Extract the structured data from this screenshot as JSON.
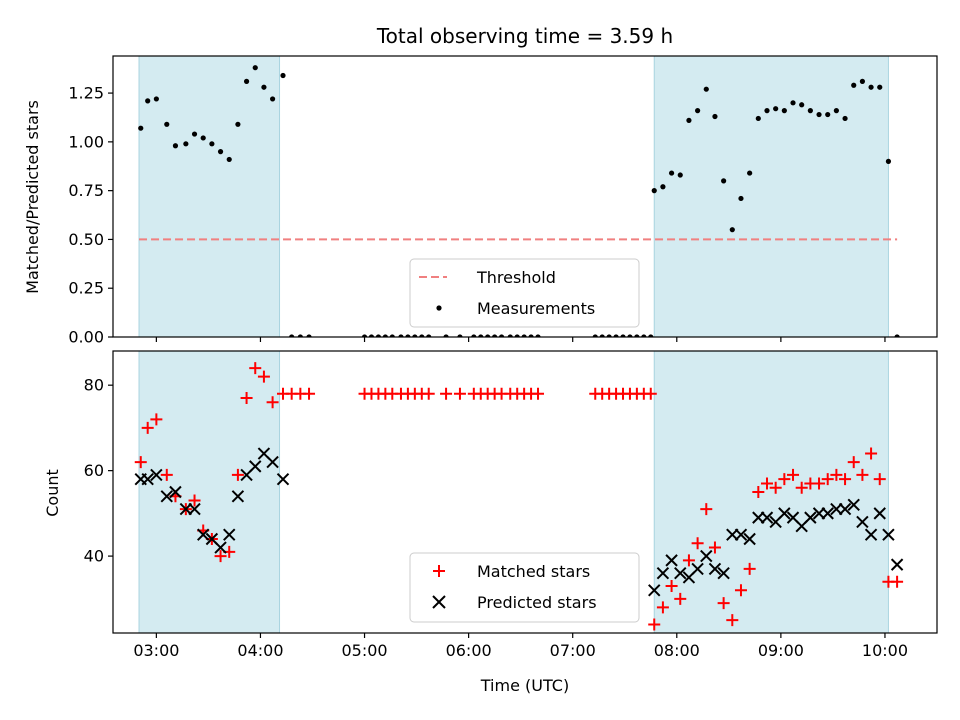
{
  "chart_data": [
    {
      "type": "scatter",
      "title": "Total observing time = 3.59 h",
      "xlabel": "",
      "ylabel": "Matched/Predicted stars",
      "ylim": [
        0,
        1.44
      ],
      "yticks": [
        0.0,
        0.25,
        0.5,
        0.75,
        1.0,
        1.25
      ],
      "ytick_labels": [
        "0.00",
        "0.25",
        "0.50",
        "0.75",
        "1.00",
        "1.25"
      ],
      "xlim": [
        "02:35",
        "10:30"
      ],
      "shaded_spans": [
        [
          "02:50",
          "04:11"
        ],
        [
          "07:47",
          "10:02"
        ]
      ],
      "threshold": {
        "name": "Threshold",
        "value": 0.5,
        "x_range": [
          "02:50",
          "10:07"
        ],
        "color": "#f08080",
        "style": "dashed"
      },
      "legend": {
        "placement": "lower-center",
        "entries": [
          "Threshold",
          "Measurements"
        ]
      },
      "series": [
        {
          "name": "Measurements",
          "marker": "dot",
          "color": "#000000",
          "points": [
            [
              "02:51",
              1.07
            ],
            [
              "02:55",
              1.21
            ],
            [
              "03:00",
              1.22
            ],
            [
              "03:06",
              1.09
            ],
            [
              "03:11",
              0.98
            ],
            [
              "03:17",
              0.99
            ],
            [
              "03:22",
              1.04
            ],
            [
              "03:27",
              1.02
            ],
            [
              "03:32",
              0.99
            ],
            [
              "03:37",
              0.95
            ],
            [
              "03:42",
              0.91
            ],
            [
              "03:47",
              1.09
            ],
            [
              "03:52",
              1.31
            ],
            [
              "03:57",
              1.38
            ],
            [
              "04:02",
              1.28
            ],
            [
              "04:07",
              1.22
            ],
            [
              "04:13",
              1.34
            ],
            [
              "04:18",
              0.0
            ],
            [
              "04:23",
              0.0
            ],
            [
              "04:28",
              0.0
            ],
            [
              "05:00",
              0.0
            ],
            [
              "05:04",
              0.0
            ],
            [
              "05:08",
              0.0
            ],
            [
              "05:12",
              0.0
            ],
            [
              "05:16",
              0.0
            ],
            [
              "05:21",
              0.0
            ],
            [
              "05:25",
              0.0
            ],
            [
              "05:29",
              0.0
            ],
            [
              "05:33",
              0.0
            ],
            [
              "05:37",
              0.0
            ],
            [
              "05:47",
              0.0
            ],
            [
              "05:55",
              0.0
            ],
            [
              "06:03",
              0.0
            ],
            [
              "06:07",
              0.0
            ],
            [
              "06:11",
              0.0
            ],
            [
              "06:15",
              0.0
            ],
            [
              "06:19",
              0.0
            ],
            [
              "06:24",
              0.0
            ],
            [
              "06:28",
              0.0
            ],
            [
              "06:32",
              0.0
            ],
            [
              "06:36",
              0.0
            ],
            [
              "06:40",
              0.0
            ],
            [
              "07:13",
              0.0
            ],
            [
              "07:17",
              0.0
            ],
            [
              "07:21",
              0.0
            ],
            [
              "07:25",
              0.0
            ],
            [
              "07:29",
              0.0
            ],
            [
              "07:33",
              0.0
            ],
            [
              "07:37",
              0.0
            ],
            [
              "07:41",
              0.0
            ],
            [
              "07:45",
              0.0
            ],
            [
              "07:47",
              0.75
            ],
            [
              "07:52",
              0.77
            ],
            [
              "07:57",
              0.84
            ],
            [
              "08:02",
              0.83
            ],
            [
              "08:07",
              1.11
            ],
            [
              "08:12",
              1.16
            ],
            [
              "08:17",
              1.27
            ],
            [
              "08:22",
              1.13
            ],
            [
              "08:27",
              0.8
            ],
            [
              "08:32",
              0.55
            ],
            [
              "08:37",
              0.71
            ],
            [
              "08:42",
              0.84
            ],
            [
              "08:47",
              1.12
            ],
            [
              "08:52",
              1.16
            ],
            [
              "08:57",
              1.17
            ],
            [
              "09:02",
              1.16
            ],
            [
              "09:07",
              1.2
            ],
            [
              "09:12",
              1.19
            ],
            [
              "09:17",
              1.16
            ],
            [
              "09:22",
              1.14
            ],
            [
              "09:27",
              1.14
            ],
            [
              "09:32",
              1.16
            ],
            [
              "09:37",
              1.12
            ],
            [
              "09:42",
              1.29
            ],
            [
              "09:47",
              1.31
            ],
            [
              "09:52",
              1.28
            ],
            [
              "09:57",
              1.28
            ],
            [
              "10:02",
              0.9
            ],
            [
              "10:07",
              0.0
            ]
          ]
        }
      ]
    },
    {
      "type": "scatter",
      "title": "",
      "xlabel": "Time (UTC)",
      "ylabel": "Count",
      "ylim": [
        22,
        88
      ],
      "yticks": [
        40,
        60,
        80
      ],
      "ytick_labels": [
        "40",
        "60",
        "80"
      ],
      "xlim": [
        "02:35",
        "10:30"
      ],
      "xticks": [
        "03:00",
        "04:00",
        "05:00",
        "06:00",
        "07:00",
        "08:00",
        "09:00",
        "10:00"
      ],
      "xtick_labels": [
        "03:00",
        "04:00",
        "05:00",
        "06:00",
        "07:00",
        "08:00",
        "09:00",
        "10:00"
      ],
      "shaded_spans": [
        [
          "02:50",
          "04:11"
        ],
        [
          "07:47",
          "10:02"
        ]
      ],
      "legend": {
        "placement": "lower-center",
        "entries": [
          "Matched stars",
          "Predicted stars"
        ]
      },
      "series": [
        {
          "name": "Matched stars",
          "marker": "plus",
          "color": "#ff0000",
          "points": [
            [
              "02:51",
              62
            ],
            [
              "02:55",
              70
            ],
            [
              "03:00",
              72
            ],
            [
              "03:06",
              59
            ],
            [
              "03:11",
              54
            ],
            [
              "03:17",
              51
            ],
            [
              "03:22",
              53
            ],
            [
              "03:27",
              46
            ],
            [
              "03:32",
              44
            ],
            [
              "03:37",
              40
            ],
            [
              "03:42",
              41
            ],
            [
              "03:47",
              59
            ],
            [
              "03:52",
              77
            ],
            [
              "03:57",
              84
            ],
            [
              "04:02",
              82
            ],
            [
              "04:07",
              76
            ],
            [
              "04:13",
              78
            ],
            [
              "04:18",
              78
            ],
            [
              "04:23",
              78
            ],
            [
              "04:28",
              78
            ],
            [
              "05:00",
              78
            ],
            [
              "05:04",
              78
            ],
            [
              "05:08",
              78
            ],
            [
              "05:12",
              78
            ],
            [
              "05:16",
              78
            ],
            [
              "05:21",
              78
            ],
            [
              "05:25",
              78
            ],
            [
              "05:29",
              78
            ],
            [
              "05:33",
              78
            ],
            [
              "05:37",
              78
            ],
            [
              "05:47",
              78
            ],
            [
              "05:55",
              78
            ],
            [
              "06:03",
              78
            ],
            [
              "06:07",
              78
            ],
            [
              "06:11",
              78
            ],
            [
              "06:15",
              78
            ],
            [
              "06:19",
              78
            ],
            [
              "06:24",
              78
            ],
            [
              "06:28",
              78
            ],
            [
              "06:32",
              78
            ],
            [
              "06:36",
              78
            ],
            [
              "06:40",
              78
            ],
            [
              "07:13",
              78
            ],
            [
              "07:17",
              78
            ],
            [
              "07:21",
              78
            ],
            [
              "07:25",
              78
            ],
            [
              "07:29",
              78
            ],
            [
              "07:33",
              78
            ],
            [
              "07:37",
              78
            ],
            [
              "07:41",
              78
            ],
            [
              "07:45",
              78
            ],
            [
              "07:47",
              24
            ],
            [
              "07:52",
              28
            ],
            [
              "07:57",
              33
            ],
            [
              "08:02",
              30
            ],
            [
              "08:07",
              39
            ],
            [
              "08:12",
              43
            ],
            [
              "08:17",
              51
            ],
            [
              "08:22",
              42
            ],
            [
              "08:27",
              29
            ],
            [
              "08:32",
              25
            ],
            [
              "08:37",
              32
            ],
            [
              "08:42",
              37
            ],
            [
              "08:47",
              55
            ],
            [
              "08:52",
              57
            ],
            [
              "08:57",
              56
            ],
            [
              "09:02",
              58
            ],
            [
              "09:07",
              59
            ],
            [
              "09:12",
              56
            ],
            [
              "09:17",
              57
            ],
            [
              "09:22",
              57
            ],
            [
              "09:27",
              58
            ],
            [
              "09:32",
              59
            ],
            [
              "09:37",
              58
            ],
            [
              "09:42",
              62
            ],
            [
              "09:47",
              59
            ],
            [
              "09:52",
              64
            ],
            [
              "09:57",
              58
            ],
            [
              "10:02",
              34
            ],
            [
              "10:07",
              34
            ]
          ]
        },
        {
          "name": "Predicted stars",
          "marker": "x",
          "color": "#000000",
          "points": [
            [
              "02:51",
              58
            ],
            [
              "02:55",
              58
            ],
            [
              "03:00",
              59
            ],
            [
              "03:06",
              54
            ],
            [
              "03:11",
              55
            ],
            [
              "03:17",
              51
            ],
            [
              "03:22",
              51
            ],
            [
              "03:27",
              45
            ],
            [
              "03:32",
              44
            ],
            [
              "03:37",
              42
            ],
            [
              "03:42",
              45
            ],
            [
              "03:47",
              54
            ],
            [
              "03:52",
              59
            ],
            [
              "03:57",
              61
            ],
            [
              "04:02",
              64
            ],
            [
              "04:07",
              62
            ],
            [
              "04:13",
              58
            ],
            [
              "07:47",
              32
            ],
            [
              "07:52",
              36
            ],
            [
              "07:57",
              39
            ],
            [
              "08:02",
              36
            ],
            [
              "08:07",
              35
            ],
            [
              "08:12",
              37
            ],
            [
              "08:17",
              40
            ],
            [
              "08:22",
              37
            ],
            [
              "08:27",
              36
            ],
            [
              "08:32",
              45
            ],
            [
              "08:37",
              45
            ],
            [
              "08:42",
              44
            ],
            [
              "08:47",
              49
            ],
            [
              "08:52",
              49
            ],
            [
              "08:57",
              48
            ],
            [
              "09:02",
              50
            ],
            [
              "09:07",
              49
            ],
            [
              "09:12",
              47
            ],
            [
              "09:17",
              49
            ],
            [
              "09:22",
              50
            ],
            [
              "09:27",
              50
            ],
            [
              "09:32",
              51
            ],
            [
              "09:37",
              51
            ],
            [
              "09:42",
              52
            ],
            [
              "09:47",
              48
            ],
            [
              "09:52",
              45
            ],
            [
              "09:57",
              50
            ],
            [
              "10:02",
              45
            ],
            [
              "10:07",
              38
            ]
          ]
        }
      ]
    }
  ],
  "colors": {
    "shade": "#d4ebf1",
    "shade_edge": "#a9d4e0",
    "threshold": "#f08080",
    "matched": "#ff0000",
    "predicted": "#000000"
  }
}
